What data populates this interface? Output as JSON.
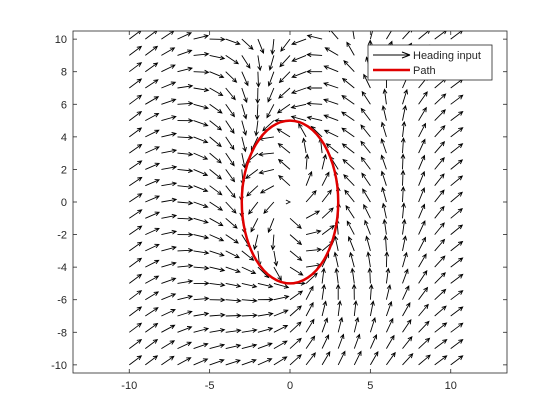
{
  "chart_data": {
    "type": "quiver",
    "title": "",
    "xlabel": "",
    "ylabel": "",
    "xlim": [
      -13.5,
      13.5
    ],
    "ylim": [
      -10.5,
      10.5
    ],
    "x_ticks": [
      -10,
      -5,
      0,
      5,
      10
    ],
    "y_ticks": [
      -10,
      -8,
      -6,
      -4,
      -2,
      0,
      2,
      4,
      6,
      8,
      10
    ],
    "grid": false,
    "legend_position": "top-right",
    "series": [
      {
        "name": "Heading input",
        "kind": "vector-field",
        "color": "#000000",
        "grid_x_range": [
          -10,
          10
        ],
        "grid_y_range": [
          -10,
          10
        ],
        "grid_spacing": 1,
        "ellipse_center": [
          0,
          0
        ],
        "ellipse_radii": [
          3,
          5
        ],
        "field": "guidance vector field converging to the path, circulating counter-clockwise; free-stream direction up-right far from the path"
      },
      {
        "name": "Path",
        "kind": "ellipse",
        "color": "#e00000",
        "center": [
          0,
          0
        ],
        "radius_x": 3,
        "radius_y": 5
      }
    ]
  }
}
